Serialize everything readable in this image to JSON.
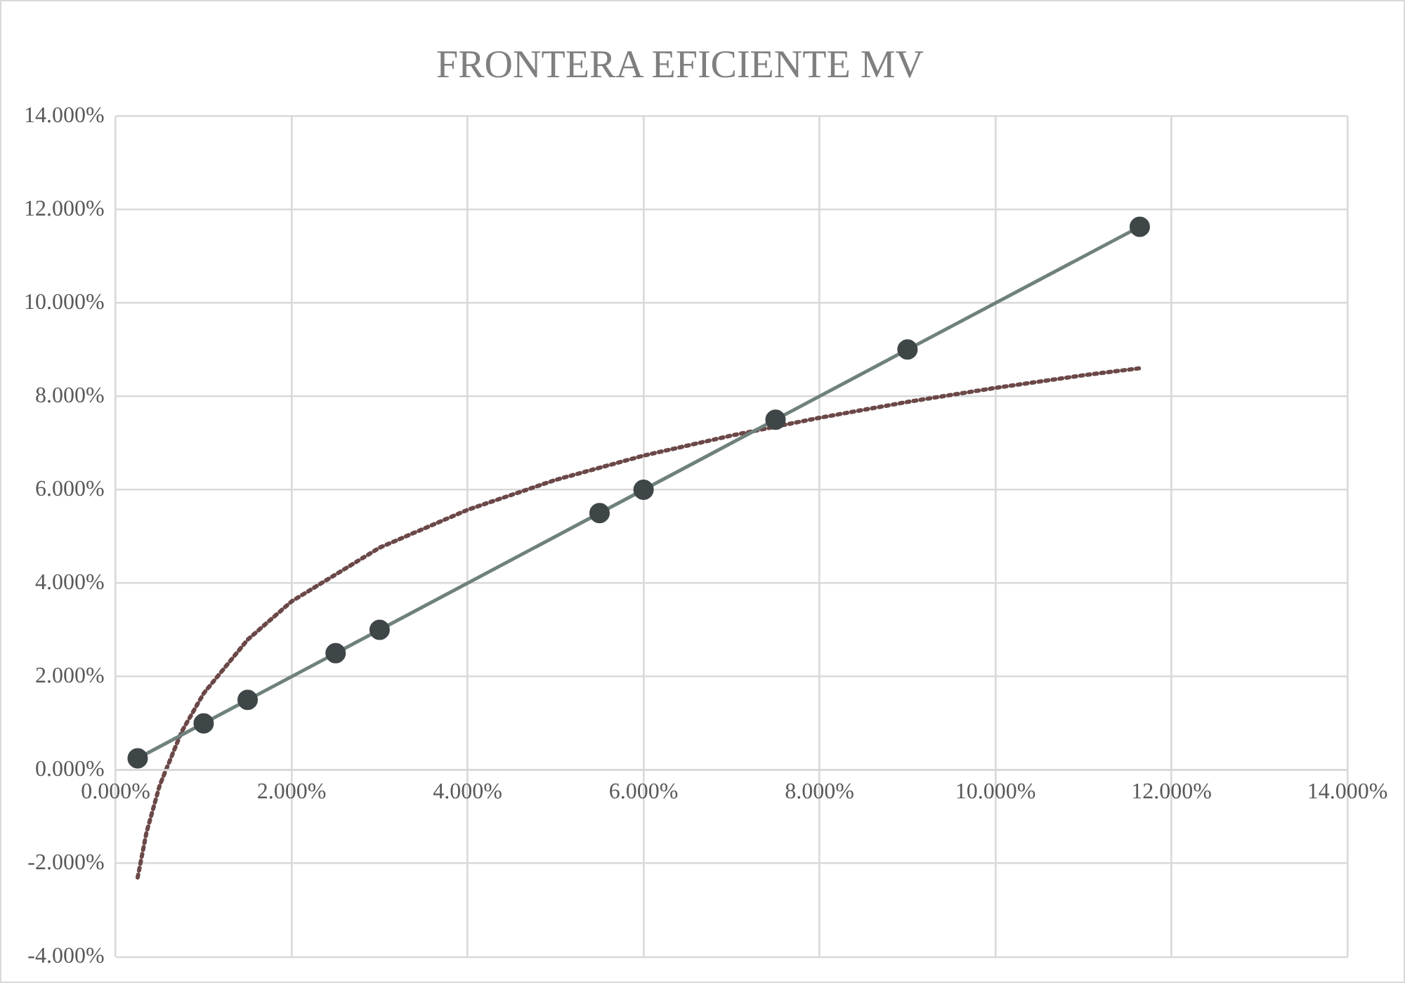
{
  "chart_data": {
    "type": "line",
    "title": "FRONTERA EFICIENTE MV",
    "xlim": [
      0,
      14
    ],
    "ylim": [
      -4,
      14
    ],
    "xticks": [
      {
        "value": 0,
        "label": "0.000%"
      },
      {
        "value": 2,
        "label": "2.000%"
      },
      {
        "value": 4,
        "label": "4.000%"
      },
      {
        "value": 6,
        "label": "6.000%"
      },
      {
        "value": 8,
        "label": "8.000%"
      },
      {
        "value": 10,
        "label": "10.000%"
      },
      {
        "value": 12,
        "label": "12.000%"
      },
      {
        "value": 14,
        "label": "14.000%"
      }
    ],
    "yticks": [
      {
        "value": -4,
        "label": "-4.000%"
      },
      {
        "value": -2,
        "label": "-2.000%"
      },
      {
        "value": 0,
        "label": "0.000%"
      },
      {
        "value": 2,
        "label": "2.000%"
      },
      {
        "value": 4,
        "label": "4.000%"
      },
      {
        "value": 6,
        "label": "6.000%"
      },
      {
        "value": 8,
        "label": "8.000%"
      },
      {
        "value": 10,
        "label": "10.000%"
      },
      {
        "value": 12,
        "label": "12.000%"
      },
      {
        "value": 14,
        "label": "14.000%"
      }
    ],
    "grid": true,
    "series": [
      {
        "color": "#6f817d",
        "marker": "circle",
        "line_style": "solid",
        "x": [
          0.25,
          1,
          1.5,
          2.5,
          3,
          5.5,
          6,
          7.5,
          9,
          11.64
        ],
        "values": [
          0.25,
          1,
          1.5,
          2.5,
          3,
          5.5,
          6,
          7.5,
          9,
          11.63
        ]
      },
      {
        "color": "#6b4848",
        "marker": "none",
        "line_style": "dotted",
        "x": [
          0.25,
          0.35,
          0.5,
          0.75,
          1,
          1.5,
          2,
          3,
          4,
          5,
          6,
          7,
          8,
          9,
          10,
          11,
          11.64
        ],
        "values": [
          -2.3,
          -1.34,
          -0.33,
          0.82,
          1.64,
          2.79,
          3.61,
          4.76,
          5.57,
          6.21,
          6.73,
          7.16,
          7.54,
          7.88,
          8.18,
          8.45,
          8.6
        ]
      }
    ]
  }
}
